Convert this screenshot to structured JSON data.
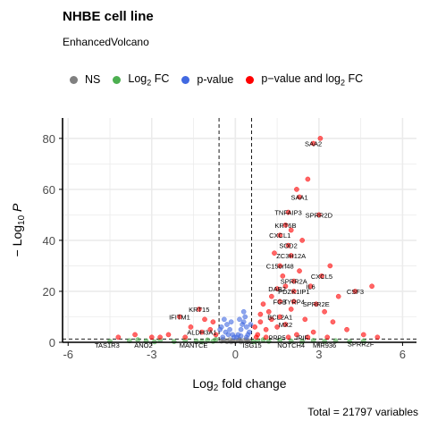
{
  "chart_data": {
    "type": "scatter",
    "title": "NHBE cell line",
    "subtitle": "EnhancedVolcano",
    "caption": "Total = 21797 variables",
    "xlabel": "Log2 fold change",
    "ylabel": "-Log10 P",
    "xlim": [
      -6.2,
      6.5
    ],
    "ylim": [
      0,
      88
    ],
    "x_ticks": [
      -6,
      -3,
      0,
      3,
      6
    ],
    "y_ticks": [
      0,
      20,
      40,
      60,
      80
    ],
    "grid": true,
    "legend_position": "top",
    "fc_cutoff": 0.585,
    "p_cutoff_log10": 1.3,
    "colors": {
      "ns": "#808080",
      "fc": "#4caf50",
      "pval": "#4169e1",
      "both": "#ff0000",
      "axis": "#000000",
      "grid": "#ebebeb"
    },
    "legend": [
      {
        "key": "ns",
        "label": "NS"
      },
      {
        "key": "fc",
        "label": "Log",
        "sub": "2",
        "suffix": " FC"
      },
      {
        "key": "pval",
        "label": "p-value"
      },
      {
        "key": "both",
        "label": "p−value and log",
        "sub": "2",
        "suffix": " FC"
      }
    ],
    "labeled_points": [
      {
        "gene": "SAA2",
        "x": 2.8,
        "y": 78
      },
      {
        "gene": "SAA1",
        "x": 2.3,
        "y": 57
      },
      {
        "gene": "TNFAIP3",
        "x": 1.9,
        "y": 51
      },
      {
        "gene": "SPRR2D",
        "x": 3.0,
        "y": 50
      },
      {
        "gene": "KRT6B",
        "x": 1.8,
        "y": 46
      },
      {
        "gene": "CXCL1",
        "x": 1.6,
        "y": 42
      },
      {
        "gene": "SOD2",
        "x": 1.9,
        "y": 38
      },
      {
        "gene": "ZC3H12A",
        "x": 2.0,
        "y": 34
      },
      {
        "gene": "C15orf48",
        "x": 1.6,
        "y": 30
      },
      {
        "gene": "CXCL5",
        "x": 3.1,
        "y": 26
      },
      {
        "gene": "SPRR2A",
        "x": 2.1,
        "y": 24
      },
      {
        "gene": "IL6",
        "x": 2.7,
        "y": 22
      },
      {
        "gene": "DAB2",
        "x": 1.5,
        "y": 21
      },
      {
        "gene": "PDZK1IP1",
        "x": 2.1,
        "y": 20
      },
      {
        "gene": "CSF3",
        "x": 4.3,
        "y": 20
      },
      {
        "gene": "FGB",
        "x": 1.6,
        "y": 16
      },
      {
        "gene": "TYRP4",
        "x": 2.1,
        "y": 16
      },
      {
        "gene": "SPRR2E",
        "x": 2.9,
        "y": 15
      },
      {
        "gene": "KRT15",
        "x": -1.3,
        "y": 13
      },
      {
        "gene": "IFITM1",
        "x": -2.0,
        "y": 10
      },
      {
        "gene": "BCL2A1",
        "x": 1.6,
        "y": 10
      },
      {
        "gene": "MX2",
        "x": 1.8,
        "y": 7
      },
      {
        "gene": "ALDH3A1",
        "x": -1.2,
        "y": 4
      },
      {
        "gene": "TAS1R3",
        "x": -4.6,
        "y": -1
      },
      {
        "gene": "ANO2",
        "x": -3.3,
        "y": -1
      },
      {
        "gene": "MANTCE",
        "x": -1.5,
        "y": -1
      },
      {
        "gene": "ISG15",
        "x": 0.6,
        "y": -1
      },
      {
        "gene": "NOTCH4",
        "x": 2.0,
        "y": -1
      },
      {
        "gene": "MIR936",
        "x": 3.2,
        "y": -1
      },
      {
        "gene": "SPRR2F",
        "x": 4.5,
        "y": -0.5
      },
      {
        "gene": "PPP5",
        "x": 1.5,
        "y": 2
      },
      {
        "gene": "IPIF",
        "x": 2.4,
        "y": 2
      }
    ],
    "points_both": [
      [
        2.8,
        78
      ],
      [
        3.05,
        80
      ],
      [
        2.3,
        57
      ],
      [
        1.9,
        51
      ],
      [
        3.0,
        50
      ],
      [
        1.8,
        46
      ],
      [
        1.6,
        42
      ],
      [
        1.9,
        38
      ],
      [
        2.0,
        34
      ],
      [
        1.6,
        30
      ],
      [
        3.1,
        26
      ],
      [
        2.1,
        24
      ],
      [
        2.7,
        22
      ],
      [
        1.5,
        21
      ],
      [
        2.1,
        20
      ],
      [
        4.3,
        20
      ],
      [
        1.6,
        16
      ],
      [
        2.1,
        16
      ],
      [
        2.9,
        15
      ],
      [
        -1.3,
        13
      ],
      [
        -2.0,
        10
      ],
      [
        1.6,
        10
      ],
      [
        1.8,
        7
      ],
      [
        -1.2,
        4
      ],
      [
        3.4,
        30
      ],
      [
        4.9,
        22
      ],
      [
        2.6,
        64
      ],
      [
        2.2,
        60
      ],
      [
        3.5,
        8
      ],
      [
        4.0,
        5
      ],
      [
        1.2,
        12
      ],
      [
        0.9,
        8
      ],
      [
        1.1,
        5
      ],
      [
        0.8,
        3
      ],
      [
        1.3,
        18
      ],
      [
        1.7,
        26
      ],
      [
        2.4,
        40
      ],
      [
        2.0,
        44
      ],
      [
        1.4,
        35
      ],
      [
        3.2,
        12
      ],
      [
        3.7,
        18
      ],
      [
        2.5,
        9
      ],
      [
        2.8,
        4
      ],
      [
        4.6,
        3
      ],
      [
        5.1,
        2
      ],
      [
        -0.8,
        8
      ],
      [
        -0.9,
        5
      ],
      [
        -1.6,
        6
      ],
      [
        -2.4,
        3
      ],
      [
        -3.0,
        2
      ],
      [
        -3.6,
        3
      ],
      [
        -4.2,
        2
      ],
      [
        -1.1,
        9
      ],
      [
        -0.7,
        3
      ],
      [
        1.0,
        15
      ],
      [
        1.5,
        6
      ],
      [
        2.2,
        3
      ],
      [
        3.3,
        2
      ],
      [
        0.7,
        6
      ],
      [
        0.75,
        2
      ],
      [
        1.1,
        2
      ],
      [
        1.9,
        2
      ],
      [
        2.6,
        2
      ],
      [
        -1.8,
        2
      ],
      [
        -2.7,
        2
      ],
      [
        0.9,
        11
      ],
      [
        1.3,
        9
      ],
      [
        2.0,
        13
      ],
      [
        2.3,
        28
      ],
      [
        1.8,
        22
      ]
    ],
    "points_pval": [
      [
        0.1,
        3
      ],
      [
        0.2,
        5
      ],
      [
        0.3,
        8
      ],
      [
        0.4,
        6
      ],
      [
        0.5,
        4
      ],
      [
        0.35,
        10
      ],
      [
        0.25,
        7
      ],
      [
        0.45,
        3
      ],
      [
        -0.1,
        3
      ],
      [
        -0.2,
        5
      ],
      [
        -0.3,
        7
      ],
      [
        -0.4,
        9
      ],
      [
        -0.5,
        6
      ],
      [
        -0.35,
        4
      ],
      [
        -0.25,
        3
      ],
      [
        0.15,
        9
      ],
      [
        0.05,
        2
      ],
      [
        -0.05,
        2
      ],
      [
        0.55,
        7
      ],
      [
        -0.55,
        5
      ],
      [
        0.3,
        12
      ],
      [
        0.4,
        2
      ],
      [
        -0.45,
        2
      ],
      [
        0.2,
        2.5
      ],
      [
        -0.15,
        8
      ]
    ],
    "points_fc": [
      [
        -4.5,
        0.4
      ],
      [
        -3.8,
        0.6
      ],
      [
        -3.2,
        0.5
      ],
      [
        -2.7,
        0.8
      ],
      [
        -2.2,
        0.3
      ],
      [
        -1.8,
        0.7
      ],
      [
        -1.4,
        0.5
      ],
      [
        -1.0,
        0.9
      ],
      [
        -0.8,
        0.4
      ],
      [
        -2.9,
        0.2
      ],
      [
        0.8,
        0.6
      ],
      [
        1.2,
        0.4
      ],
      [
        1.6,
        0.8
      ],
      [
        2.0,
        0.5
      ],
      [
        2.4,
        0.3
      ],
      [
        2.8,
        0.7
      ],
      [
        3.2,
        0.4
      ],
      [
        3.6,
        0.6
      ],
      [
        4.1,
        0.3
      ],
      [
        4.6,
        0.5
      ],
      [
        -1.2,
        0.2
      ],
      [
        1.0,
        1.0
      ],
      [
        -0.7,
        1.1
      ],
      [
        0.65,
        0.2
      ],
      [
        -3.5,
        1.0
      ]
    ],
    "points_ns": [
      [
        -0.5,
        0.5
      ],
      [
        -0.4,
        0.8
      ],
      [
        -0.3,
        0.3
      ],
      [
        -0.2,
        1.0
      ],
      [
        -0.1,
        0.6
      ],
      [
        0.0,
        0.4
      ],
      [
        0.1,
        0.9
      ],
      [
        0.2,
        0.2
      ],
      [
        0.3,
        0.7
      ],
      [
        0.4,
        1.1
      ],
      [
        0.5,
        0.5
      ],
      [
        -0.45,
        1.1
      ],
      [
        0.45,
        0.3
      ],
      [
        -0.15,
        0.2
      ],
      [
        0.15,
        1.2
      ]
    ]
  }
}
